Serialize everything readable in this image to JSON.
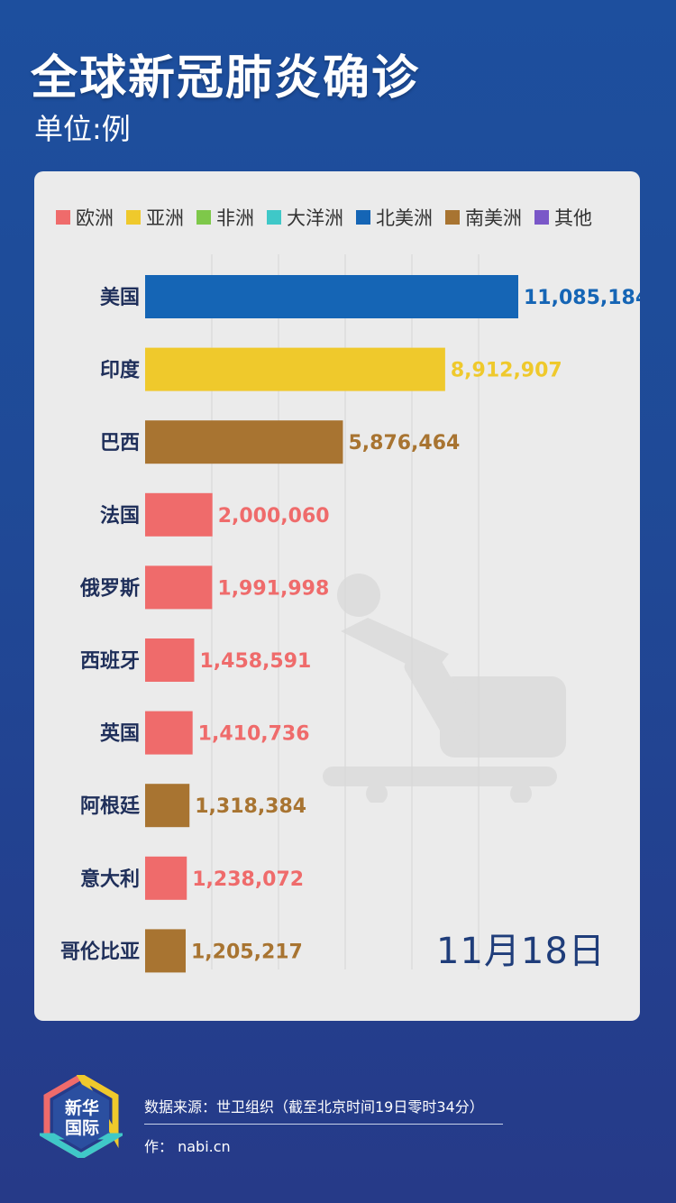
{
  "header": {
    "title": "全球新冠肺炎确诊",
    "unit": "单位:例"
  },
  "legend": [
    {
      "label": "欧洲",
      "color": "#ef6b6b"
    },
    {
      "label": "亚洲",
      "color": "#efc92c"
    },
    {
      "label": "非洲",
      "color": "#7ec84a"
    },
    {
      "label": "大洋洲",
      "color": "#3fc8c8"
    },
    {
      "label": "北美洲",
      "color": "#1565b5"
    },
    {
      "label": "南美洲",
      "color": "#a87431"
    },
    {
      "label": "其他",
      "color": "#7a57c8"
    }
  ],
  "chart_data": {
    "type": "bar",
    "orientation": "horizontal",
    "title": "全球新冠肺炎确诊",
    "unit": "单位:例",
    "date_label": "11月18日",
    "categories": [
      "美国",
      "印度",
      "巴西",
      "法国",
      "俄罗斯",
      "西班牙",
      "英国",
      "阿根廷",
      "意大利",
      "哥伦比亚"
    ],
    "values": [
      11085184,
      8912907,
      5876464,
      2000060,
      1991998,
      1458591,
      1410736,
      1318384,
      1238072,
      1205217
    ],
    "value_labels": [
      "11,085,184",
      "8,912,907",
      "5,876,464",
      "2,000,060",
      "1,991,998",
      "1,458,591",
      "1,410,736",
      "1,318,384",
      "1,238,072",
      "1,205,217"
    ],
    "regions": [
      "北美洲",
      "亚洲",
      "南美洲",
      "欧洲",
      "欧洲",
      "欧洲",
      "欧洲",
      "南美洲",
      "欧洲",
      "南美洲"
    ],
    "legend_placement": "top",
    "grid": true
  },
  "footer": {
    "logo_text": "新华国际",
    "source": "数据来源：世卫组织（截至北京时间19日零时34分）",
    "author": "作：  nabi.cn"
  }
}
